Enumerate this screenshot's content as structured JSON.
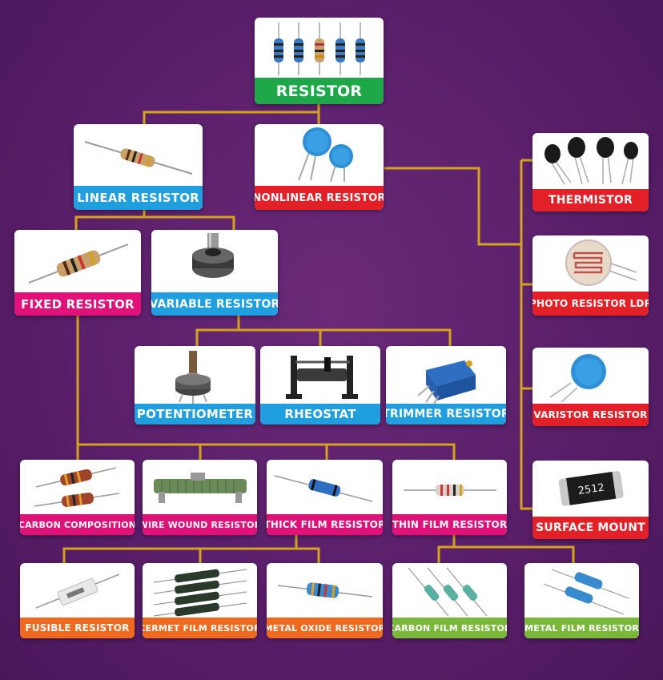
{
  "nodes": {
    "resistor": {
      "label": "RESISTOR",
      "icon": "resistor-array-icon"
    },
    "linear": {
      "label": "LINEAR RESISTOR",
      "icon": "axial-resistor-icon"
    },
    "nonlinear": {
      "label": "NONLINEAR RESISTOR",
      "icon": "disc-varistor-icon"
    },
    "thermistor": {
      "label": "THERMISTOR",
      "icon": "thermistor-icon"
    },
    "photo": {
      "label": "PHOTO RESISTOR LDR",
      "icon": "ldr-icon"
    },
    "varistor": {
      "label": "VARISTOR RESISTOR",
      "icon": "varistor-icon"
    },
    "surface": {
      "label": "SURFACE MOUNT",
      "icon": "smd-chip-icon",
      "chip_marking": "2512"
    },
    "fixed": {
      "label": "FIXED RESISTOR",
      "icon": "axial-resistor-icon"
    },
    "variable": {
      "label": "VARIABLE RESISTOR",
      "icon": "rotary-pot-icon"
    },
    "potentiometer": {
      "label": "POTENTIOMETER",
      "icon": "potentiometer-icon"
    },
    "rheostat": {
      "label": "RHEOSTAT",
      "icon": "rheostat-icon"
    },
    "trimmer": {
      "label": "TRIMMER RESISTOR",
      "icon": "trimmer-icon"
    },
    "carbon_comp": {
      "label": "CARBON COMPOSITION",
      "icon": "carbon-composition-icon"
    },
    "wire_wound": {
      "label": "WIRE WOUND RESISTOR",
      "icon": "wire-wound-icon"
    },
    "thick_film": {
      "label": "THICK FILM RESISTOR",
      "icon": "thick-film-icon"
    },
    "thin_film": {
      "label": "THIN FILM RESISTOR",
      "icon": "thin-film-icon"
    },
    "fusible": {
      "label": "FUSIBLE RESISTOR",
      "icon": "fusible-icon"
    },
    "cermet": {
      "label": "CERMET FILM RESISTOR",
      "icon": "cermet-icon"
    },
    "metal_oxide": {
      "label": "METAL OXIDE RESISTOR",
      "icon": "metal-oxide-icon"
    },
    "carbon_film": {
      "label": "CARBON FILM RESISTOR",
      "icon": "carbon-film-icon"
    },
    "metal_film": {
      "label": "METAL FILM RESISTOR",
      "icon": "metal-film-icon"
    }
  },
  "colors": {
    "background": "#5a1f6a",
    "connector": "#d4a21c",
    "root": "#1ea84a",
    "linear": "#1f9ee0",
    "nonlinear": "#e32027",
    "fixed": "#e0127a",
    "thick_thin": "#e0127a",
    "fixed_subtypes": "#ef6a1f",
    "thin_subtypes": "#7ab83a"
  }
}
